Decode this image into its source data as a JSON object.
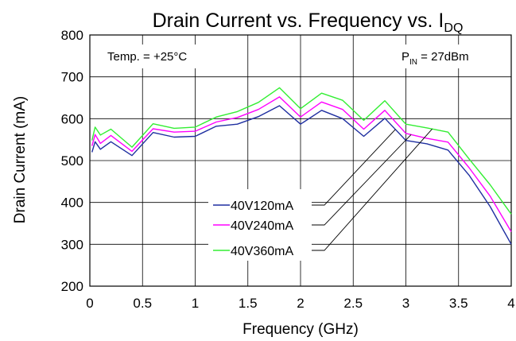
{
  "chart_data": {
    "type": "line",
    "title": {
      "main": "Drain Current vs. Frequency vs. I",
      "subscript": "DQ"
    },
    "xlabel": "Frequency (GHz)",
    "ylabel": "Drain Current (mA)",
    "xlim": [
      0,
      4
    ],
    "ylim": [
      200,
      800
    ],
    "x_ticks": [
      0,
      0.5,
      1,
      1.5,
      2,
      2.5,
      3,
      3.5,
      4
    ],
    "x_tick_labels": [
      "0",
      "0.5",
      "1",
      "1.5",
      "2",
      "2.5",
      "3",
      "3.5",
      "4"
    ],
    "y_ticks": [
      200,
      300,
      400,
      500,
      600,
      700,
      800
    ],
    "y_tick_labels": [
      "200",
      "300",
      "400",
      "500",
      "600",
      "700",
      "800"
    ],
    "grid": true,
    "annotations": {
      "temp": "Temp. = +25°C",
      "pin": {
        "main": "P",
        "subscript": "IN",
        "suffix": " = 27dBm"
      }
    },
    "x": [
      0.02,
      0.05,
      0.1,
      0.2,
      0.4,
      0.6,
      0.8,
      1.0,
      1.2,
      1.4,
      1.6,
      1.8,
      2.0,
      2.2,
      2.4,
      2.6,
      2.8,
      3.0,
      3.2,
      3.4,
      3.6,
      3.8,
      4.0
    ],
    "series": [
      {
        "name": "40V120mA",
        "color": "#1f2fa0",
        "values": [
          520,
          545,
          527,
          545,
          512,
          567,
          556,
          558,
          582,
          587,
          605,
          631,
          587,
          620,
          600,
          558,
          601,
          548,
          540,
          525,
          465,
          390,
          300
        ]
      },
      {
        "name": "40V240mA",
        "color": "#ff00ff",
        "values": [
          535,
          562,
          541,
          560,
          522,
          576,
          568,
          570,
          592,
          603,
          622,
          652,
          604,
          640,
          622,
          575,
          620,
          565,
          553,
          544,
          483,
          415,
          330
        ]
      },
      {
        "name": "40V360mA",
        "color": "#33ee33",
        "values": [
          548,
          580,
          561,
          575,
          532,
          588,
          577,
          580,
          604,
          617,
          639,
          674,
          624,
          661,
          644,
          596,
          643,
          587,
          578,
          568,
          504,
          442,
          372
        ]
      }
    ],
    "legend_position": "center-left, with leader lines pointing to curves"
  }
}
